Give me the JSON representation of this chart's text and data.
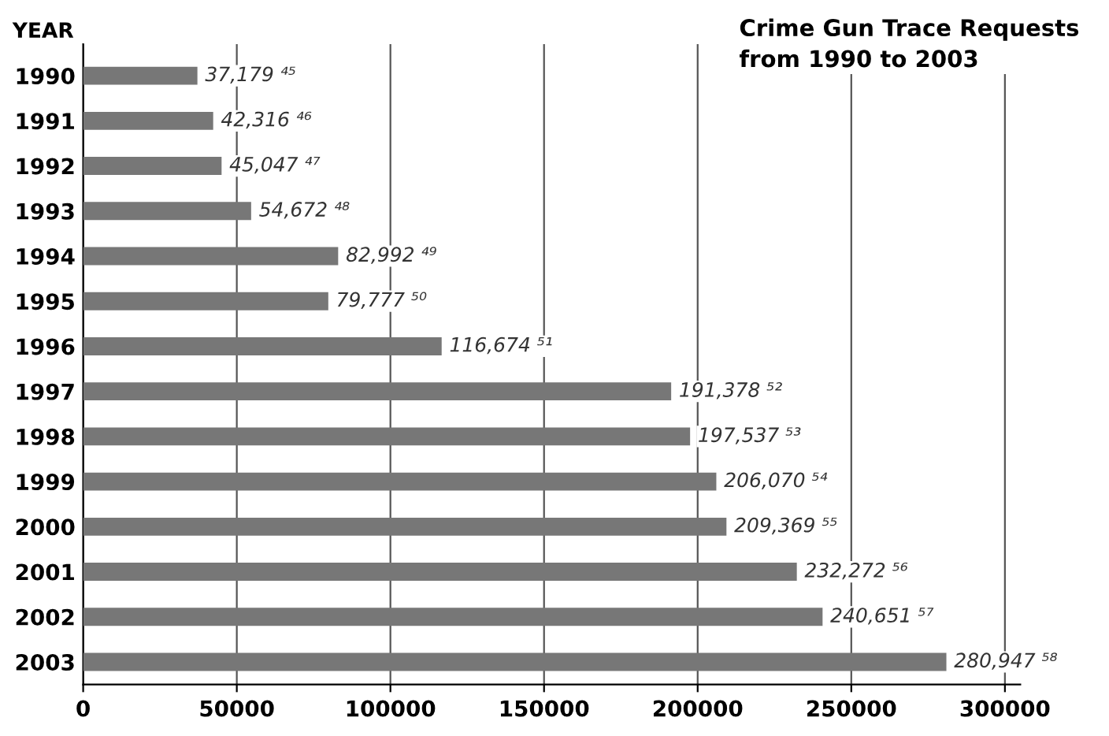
{
  "chart_data": {
    "type": "bar",
    "orientation": "horizontal",
    "title": "Crime Gun Trace Requests\nfrom 1990 to 2003",
    "ylabel": "YEAR",
    "categories": [
      "1990",
      "1991",
      "1992",
      "1993",
      "1994",
      "1995",
      "1996",
      "1997",
      "1998",
      "1999",
      "2000",
      "2001",
      "2002",
      "2003"
    ],
    "values": [
      37179,
      42316,
      45047,
      54672,
      82992,
      79777,
      116674,
      191378,
      197537,
      206070,
      209369,
      232272,
      240651,
      280947
    ],
    "value_labels": [
      "37,179 ⁴⁵",
      "42,316 ⁴⁶",
      "45,047 ⁴⁷",
      "54,672 ⁴⁸",
      "82,992 ⁴⁹",
      "79,777 ⁵⁰",
      "116,674 ⁵¹",
      "191,378 ⁵²",
      "197,537 ⁵³",
      "206,070 ⁵⁴",
      "209,369 ⁵⁵",
      "232,272 ⁵⁶",
      "240,651 ⁵⁷",
      "280,947 ⁵⁸"
    ],
    "color": "#777777",
    "xlim": [
      0,
      305000
    ],
    "xticks": [
      0,
      50000,
      100000,
      150000,
      200000,
      250000,
      300000
    ],
    "grid": "x"
  }
}
